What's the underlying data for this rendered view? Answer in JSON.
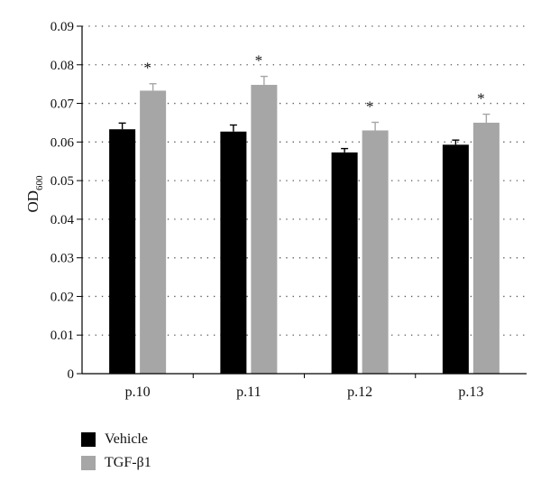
{
  "chart_data": {
    "type": "bar",
    "ylabel": "OD",
    "ylabel_subscript": "600",
    "categories": [
      "p.10",
      "p.11",
      "p.12",
      "p.13"
    ],
    "ylim": [
      0,
      0.09
    ],
    "yticks": [
      "0",
      "0.01",
      "0.02",
      "0.03",
      "0.04",
      "0.05",
      "0.06",
      "0.07",
      "0.08",
      "0.09"
    ],
    "grid": "dotted-horizontal",
    "legend_position": "bottom-left",
    "significance_marker": "*",
    "series": [
      {
        "name": "Vehicle",
        "color": "#000000",
        "values": [
          0.0633,
          0.0627,
          0.0573,
          0.0593
        ],
        "errors": [
          0.0016,
          0.0017,
          0.001,
          0.0012
        ]
      },
      {
        "name": "TGF-β1",
        "color": "#a6a6a6",
        "values": [
          0.0733,
          0.0748,
          0.063,
          0.065
        ],
        "errors": [
          0.0018,
          0.0022,
          0.0021,
          0.0022
        ],
        "significant": [
          true,
          true,
          true,
          true
        ]
      }
    ]
  }
}
